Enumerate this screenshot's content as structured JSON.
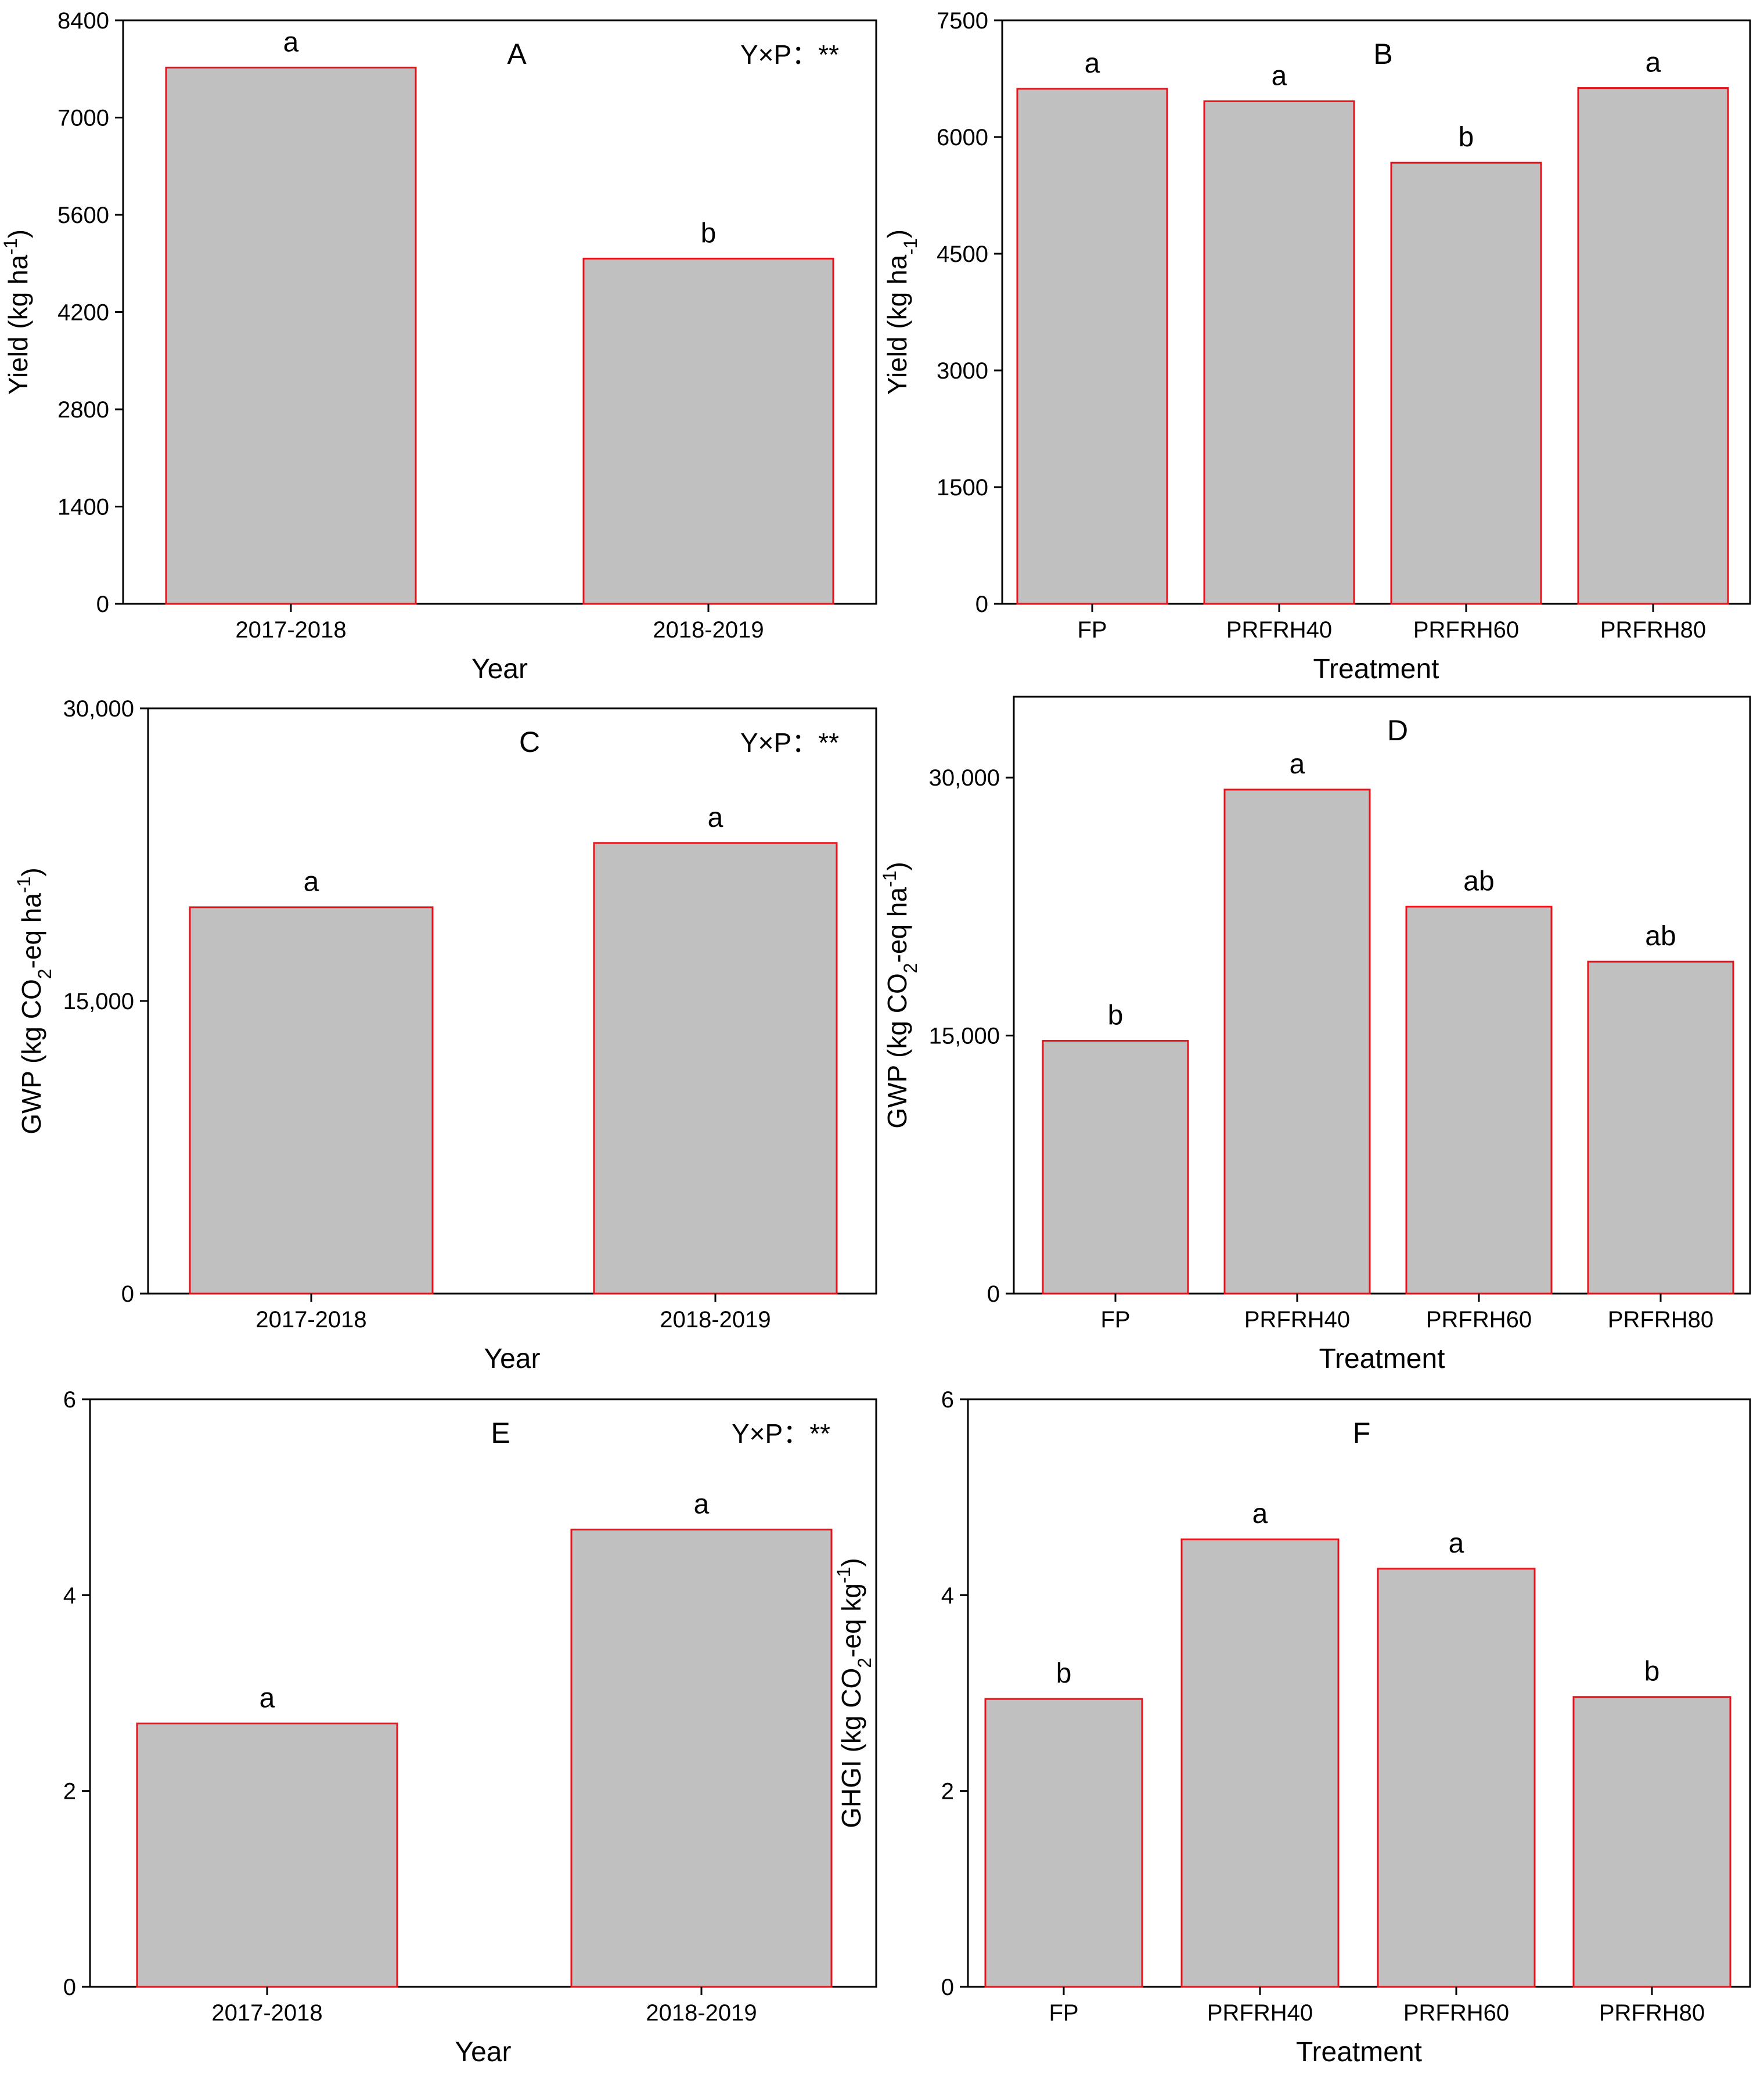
{
  "figure": {
    "bar_color": "#c0c0c0",
    "bar_edge_color": "#e8121a",
    "axis_color": "#000000"
  },
  "chart_data": [
    {
      "id": "A",
      "type": "bar",
      "panel_label": "A",
      "annotation": "Y×P：**",
      "xlabel": "Year",
      "ylabel": {
        "main": "Yield (kg ha",
        "sup": "-1",
        "tail": ")"
      },
      "categories": [
        "2017-2018",
        "2018-2019"
      ],
      "values": [
        7720,
        4970
      ],
      "letters": [
        "a",
        "b"
      ],
      "ylim": [
        0,
        8400
      ],
      "yticks": [
        0,
        1400,
        2800,
        4200,
        5600,
        7000,
        8400
      ],
      "ytick_labels": [
        "0",
        "1400",
        "2800",
        "4200",
        "5600",
        "7000",
        "8400"
      ]
    },
    {
      "id": "B",
      "type": "bar",
      "panel_label": "B",
      "xlabel": "Treatment",
      "ylabel": {
        "main": "Yield (kg ha",
        "sub": "-1",
        "tail": ")"
      },
      "categories": [
        "FP",
        "PRFRH40",
        "PRFRH60",
        "PRFRH80"
      ],
      "values": [
        6620,
        6460,
        5670,
        6630
      ],
      "letters": [
        "a",
        "a",
        "b",
        "a"
      ],
      "ylim": [
        0,
        7500
      ],
      "yticks": [
        0,
        1500,
        3000,
        4500,
        6000,
        7500
      ],
      "ytick_labels": [
        "0",
        "1500",
        "3000",
        "4500",
        "6000",
        "7500"
      ]
    },
    {
      "id": "C",
      "type": "bar",
      "panel_label": "C",
      "annotation": "Y×P：**",
      "xlabel": "Year",
      "ylabel": {
        "main": "GWP (kg CO",
        "sub": "2",
        "mid": "-eq ha",
        "sup": "-1",
        "tail": ")"
      },
      "categories": [
        "2017-2018",
        "2018-2019"
      ],
      "values": [
        19800,
        23100
      ],
      "letters": [
        "a",
        "a"
      ],
      "ylim": [
        0,
        30000
      ],
      "yticks": [
        0,
        15000,
        30000
      ],
      "ytick_labels": [
        "0",
        "15,000",
        "30,000"
      ]
    },
    {
      "id": "D",
      "type": "bar",
      "panel_label": "D",
      "xlabel": "Treatment",
      "ylabel": {
        "main": "GWP (kg CO",
        "sub": "2",
        "mid": "-eq ha",
        "sup": "-1",
        "tail": ")"
      },
      "categories": [
        "FP",
        "PRFRH40",
        "PRFRH60",
        "PRFRH80"
      ],
      "values": [
        14700,
        29300,
        22500,
        19300
      ],
      "letters": [
        "b",
        "a",
        "ab",
        "ab"
      ],
      "ylim": [
        0,
        34700
      ],
      "yticks": [
        0,
        15000,
        30000
      ],
      "ytick_labels": [
        "0",
        "15,000",
        "30,000"
      ]
    },
    {
      "id": "E",
      "type": "bar",
      "panel_label": "E",
      "annotation": "Y×P：**",
      "xlabel": "Year",
      "ylabel": {
        "main": "GHGI (kg CO",
        "sub": "2",
        "mid": "-eq kg",
        "sup": "-1",
        "tail": ")"
      },
      "categories": [
        "2017-2018",
        "2018-2019"
      ],
      "values": [
        2.69,
        4.67
      ],
      "letters": [
        "a",
        "a"
      ],
      "ylim": [
        0,
        6
      ],
      "yticks": [
        0,
        2,
        4,
        6
      ],
      "ytick_labels": [
        "0",
        "2",
        "4",
        "6"
      ]
    },
    {
      "id": "F",
      "type": "bar",
      "panel_label": "F",
      "xlabel": "Treatment",
      "ylabel": {
        "main": "GHGI (kg CO",
        "sub": "2",
        "mid": "-eq kg",
        "sup": "-1",
        "tail": ")"
      },
      "categories": [
        "FP",
        "PRFRH40",
        "PRFRH60",
        "PRFRH80"
      ],
      "values": [
        2.94,
        4.57,
        4.27,
        2.96
      ],
      "letters": [
        "b",
        "a",
        "a",
        "b"
      ],
      "ylim": [
        0,
        6
      ],
      "yticks": [
        0,
        2,
        4,
        6
      ],
      "ytick_labels": [
        "0",
        "2",
        "4",
        "6"
      ]
    }
  ]
}
